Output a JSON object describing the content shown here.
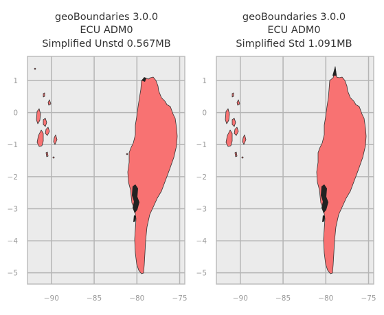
{
  "panels": [
    {
      "title_lines": [
        "geoBoundaries 3.0.0",
        "ECU ADM0",
        "Simplified Unstd 0.567MB"
      ]
    },
    {
      "title_lines": [
        "geoBoundaries 3.0.0",
        "ECU ADM0",
        "Simplified Std 1.091MB"
      ]
    }
  ],
  "chart_data": {
    "type": "map",
    "x_ticks": [
      -90,
      -85,
      -80,
      -75
    ],
    "y_ticks": [
      1,
      0,
      -1,
      -2,
      -3,
      -4,
      -5
    ],
    "xlim": [
      -92.8,
      -74.4
    ],
    "ylim": [
      -5.35,
      1.75
    ],
    "grid": true,
    "colors": {
      "fill": "#f87272",
      "edge": "#333333",
      "background": "#ebebeb",
      "grid": "#b5b5b5",
      "frame": "#bdbdbd",
      "tick_label": "#9a9a9a",
      "title": "#333333"
    }
  }
}
